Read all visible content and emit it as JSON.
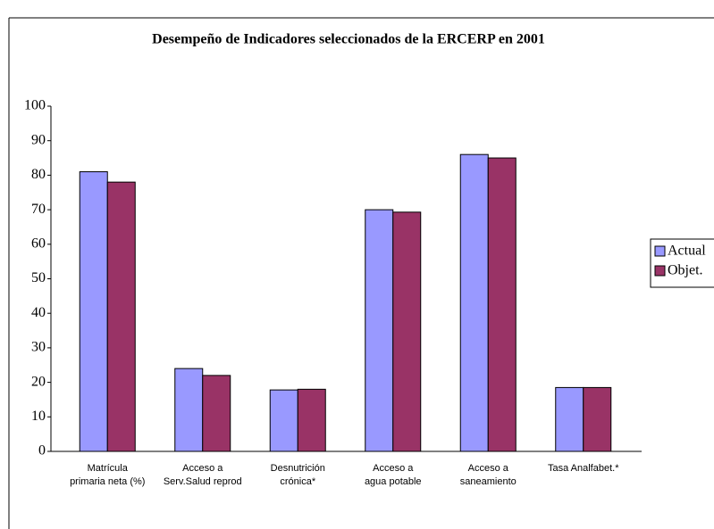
{
  "chart_data": {
    "type": "bar",
    "title": "Desempeño de Indicadores seleccionados de la ERCERP  en  2001",
    "categories": [
      [
        "Matrícula",
        "primaria neta (%)"
      ],
      [
        "Acceso a",
        "Serv.Salud reprod"
      ],
      [
        "Desnutrición",
        "crónica*"
      ],
      [
        "Acceso a",
        "agua potable"
      ],
      [
        "Acceso a",
        "saneamiento"
      ],
      [
        "Tasa Analfabet.*"
      ]
    ],
    "series": [
      {
        "name": "Actual",
        "color": "#9999ff",
        "values": [
          81,
          24,
          17.8,
          70,
          86,
          18.5
        ]
      },
      {
        "name": "Objet.",
        "color": "#993366",
        "values": [
          78,
          22,
          18,
          69.3,
          85,
          18.5
        ]
      }
    ],
    "ylim": [
      0,
      100
    ],
    "yticks": [
      0,
      10,
      20,
      30,
      40,
      50,
      60,
      70,
      80,
      90,
      100
    ],
    "grid": false,
    "legend": "right"
  }
}
